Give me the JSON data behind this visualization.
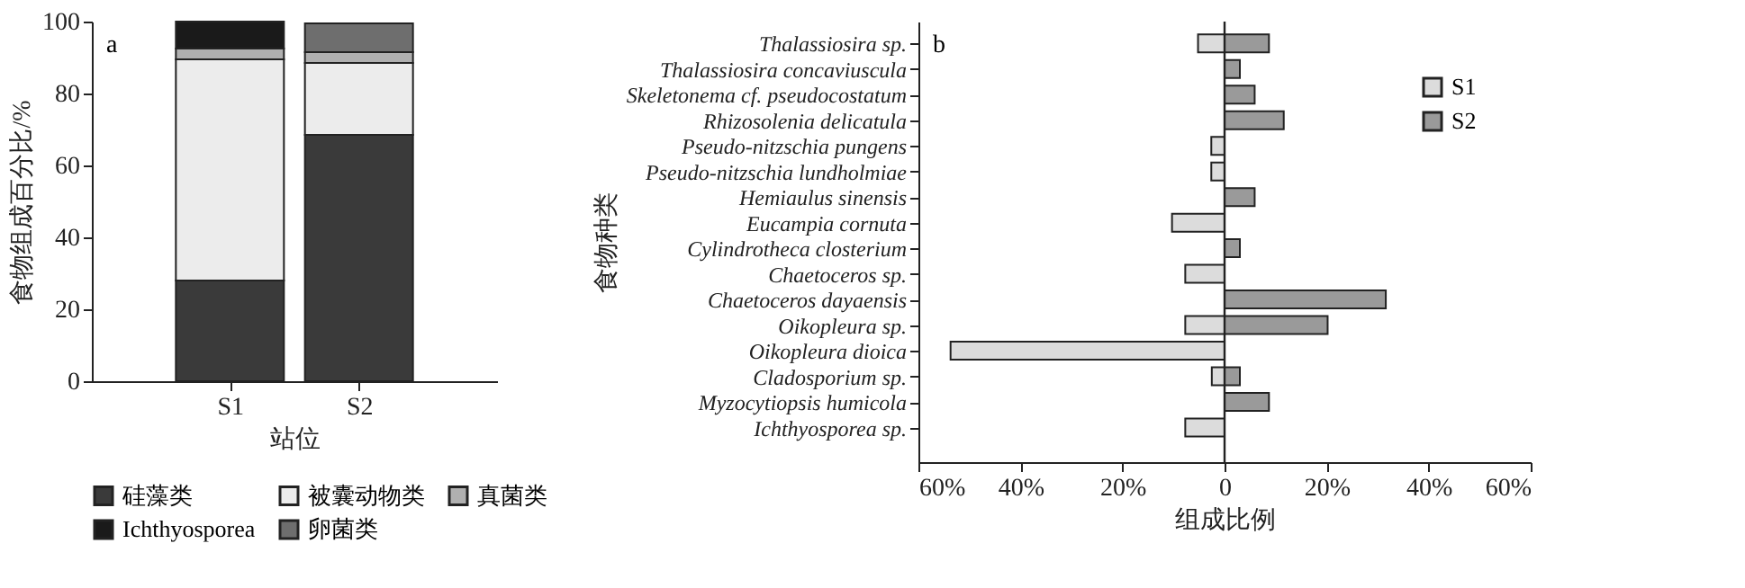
{
  "chart_data": [
    {
      "type": "bar",
      "stacked": true,
      "annotations": [
        "a"
      ],
      "xlabel": "站位",
      "ylabel": "食物组成百分比/%",
      "categories": [
        "S1",
        "S2"
      ],
      "ylim": [
        0,
        100
      ],
      "yticks": [
        0,
        20,
        40,
        60,
        80,
        100
      ],
      "grid": false,
      "legend": "bottom",
      "series": [
        {
          "name": "硅藻类",
          "color": "#3a3a3a",
          "values": [
            28,
            68.5
          ]
        },
        {
          "name": "被囊动物类",
          "color": "#ececec",
          "values": [
            61.5,
            20
          ]
        },
        {
          "name": "真菌类",
          "color": "#b0b0b0",
          "values": [
            3,
            3
          ]
        },
        {
          "name": "Ichthyosporea",
          "color": "#1a1a1a",
          "values": [
            7.5,
            0
          ]
        },
        {
          "name": "卵菌类",
          "color": "#6e6e6e",
          "values": [
            0,
            8
          ]
        }
      ]
    },
    {
      "type": "bar",
      "orientation": "horizontal",
      "annotations": [
        "b"
      ],
      "xlabel": "组成比例",
      "ylabel": "食物种类",
      "categories": [
        "Thalassiosira sp.",
        "Thalassiosira concaviuscula",
        "Skeletonema cf. pseudocostatum",
        "Rhizosolenia delicatula",
        "Pseudo-nitzschia pungens",
        "Pseudo-nitzschia lundholmiae",
        "Hemiaulus sinensis",
        "Eucampia cornuta",
        "Cylindrotheca closterium",
        "Chaetoceros sp.",
        "Chaetoceros dayaensis",
        "Oikopleura sp.",
        "Oikopleura dioica",
        "Cladosporium sp.",
        "Myzocytiopsis humicola",
        "Ichthyosporea sp."
      ],
      "xlim": [
        -60,
        60
      ],
      "xticks": [
        {
          "value": -60,
          "label": "60%"
        },
        {
          "value": -40,
          "label": "40%"
        },
        {
          "value": -20,
          "label": "20%"
        },
        0,
        {
          "value": 20,
          "label": "20%"
        },
        {
          "value": 40,
          "label": "40%"
        },
        {
          "value": 60,
          "label": "60%"
        }
      ],
      "grid": false,
      "legend": "top right",
      "ref_lines": [
        {
          "axis": "x",
          "value": 0,
          "color": "#222222"
        }
      ],
      "series": [
        {
          "name": "S1",
          "color": "#dcdcdc",
          "values": [
            -5.2,
            null,
            null,
            null,
            -2.6,
            -2.6,
            null,
            -10.3,
            null,
            -7.7,
            null,
            -7.7,
            -53.7,
            -2.5,
            null,
            -7.7
          ]
        },
        {
          "name": "S2",
          "color": "#9a9a9a",
          "values": [
            8.7,
            3,
            5.9,
            11.6,
            null,
            null,
            5.9,
            null,
            3,
            null,
            31.6,
            20.2,
            null,
            3,
            8.7,
            null
          ]
        }
      ]
    }
  ]
}
